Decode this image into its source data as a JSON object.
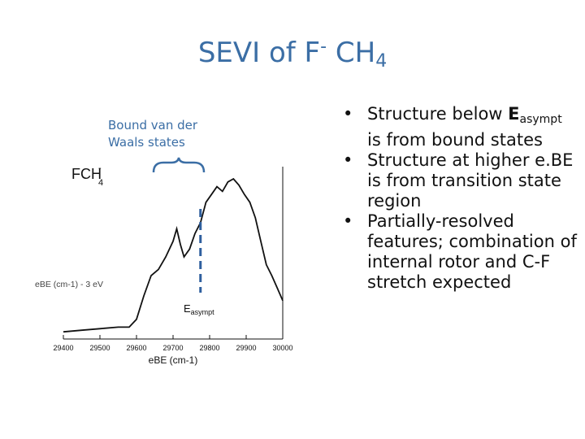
{
  "slide": {
    "title": {
      "main": "SEVI of F",
      "sup": "-",
      "rest": " CH",
      "sub": "4"
    },
    "annotation": "Bound van der Waals states",
    "bullets": [
      {
        "pre": "Structure below ",
        "e": "E",
        "sub": "asympt",
        "post": " is from bound states"
      },
      {
        "text": "Structure at higher e.BE is from transition state region"
      },
      {
        "text": "Partially-resolved features; combination of internal rotor and C-F stretch expected"
      }
    ]
  },
  "chart_data": {
    "type": "line",
    "title": "FCH4-",
    "xlabel": "eBE (cm-1)",
    "xlim": [
      29400,
      30000
    ],
    "x_ticks": [
      "29400",
      "29500",
      "29600",
      "29700",
      "29800",
      "29900",
      "30000"
    ],
    "side_text": "eBE (cm-1) - 3 eV",
    "asymptote": {
      "label": "E",
      "sub": "asympt",
      "x": 29775
    },
    "series": [
      {
        "x": [
          29400,
          29450,
          29500,
          29550,
          29580,
          29600,
          29620,
          29640,
          29660,
          29680,
          29700,
          29710,
          29720,
          29730,
          29745,
          29760,
          29775,
          29790,
          29805,
          29820,
          29835,
          29850,
          29865,
          29880,
          29895,
          29910,
          29925,
          29940,
          29955,
          29970,
          29985,
          30000
        ],
        "y": [
          0.02,
          0.03,
          0.04,
          0.05,
          0.05,
          0.1,
          0.25,
          0.38,
          0.42,
          0.5,
          0.6,
          0.68,
          0.58,
          0.5,
          0.55,
          0.65,
          0.72,
          0.85,
          0.9,
          0.95,
          0.92,
          0.98,
          1.0,
          0.96,
          0.9,
          0.85,
          0.75,
          0.6,
          0.45,
          0.38,
          0.3,
          0.22
        ]
      }
    ]
  }
}
